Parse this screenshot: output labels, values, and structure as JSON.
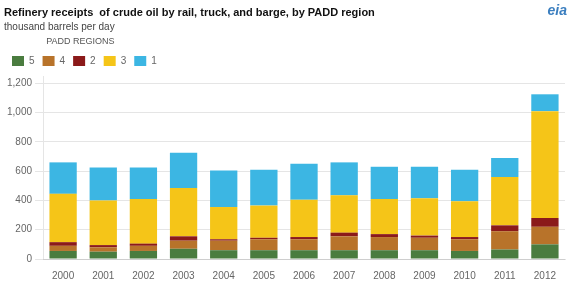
{
  "chart_data": {
    "type": "bar",
    "stacked": true,
    "title": "Refinery receipts  of crude oil by rail, truck, and barge, by PADD region",
    "subtitle": "thousand barrels per day",
    "annotations": [
      "PADD REGIONS",
      "eia"
    ],
    "categories": [
      "2000",
      "2001",
      "2002",
      "2003",
      "2004",
      "2005",
      "2006",
      "2007",
      "2008",
      "2009",
      "2010",
      "2011",
      "2012"
    ],
    "series": [
      {
        "name": "5",
        "color": "#4a7c3f",
        "values": [
          55,
          50,
          55,
          70,
          60,
          60,
          60,
          60,
          60,
          60,
          55,
          65,
          100
        ]
      },
      {
        "name": "4",
        "color": "#b8732a",
        "values": [
          35,
          30,
          35,
          55,
          65,
          75,
          75,
          95,
          90,
          85,
          80,
          125,
          120
        ]
      },
      {
        "name": "2",
        "color": "#8b1a1a",
        "values": [
          25,
          15,
          15,
          30,
          10,
          10,
          15,
          25,
          20,
          15,
          15,
          40,
          60
        ]
      },
      {
        "name": "3",
        "color": "#f5c518",
        "values": [
          330,
          305,
          305,
          330,
          220,
          220,
          255,
          255,
          240,
          255,
          245,
          330,
          730
        ]
      },
      {
        "name": "1",
        "color": "#3cb6e3",
        "values": [
          215,
          225,
          215,
          240,
          250,
          245,
          245,
          225,
          220,
          215,
          215,
          130,
          115
        ]
      }
    ],
    "ylim": [
      0,
      1250
    ],
    "yticks": [
      0,
      200,
      400,
      600,
      800,
      {
        "value": 1000,
        "label": "1,000"
      },
      {
        "value": 1200,
        "label": "1,200"
      }
    ],
    "grid": true,
    "legend": "top"
  }
}
